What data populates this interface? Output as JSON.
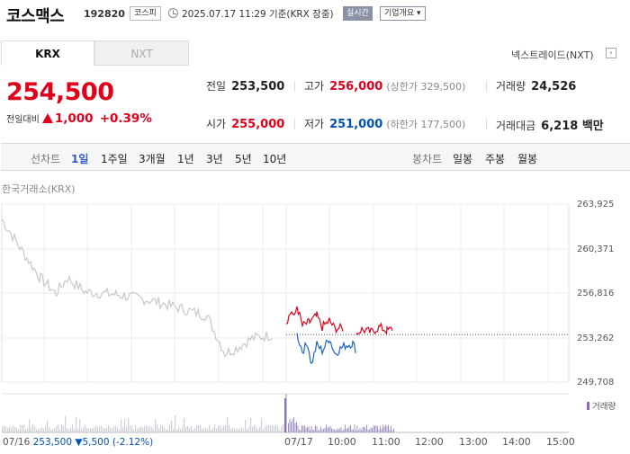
{
  "header": {
    "name": "코스맥스",
    "code": "192820",
    "market": "코스피",
    "datetime": "2025.07.17 11:29 기준(KRX 장중)",
    "realtime_label": "실시간",
    "overview_label": "기업개요 ▾"
  },
  "tabs": [
    "KRX",
    "NXT"
  ],
  "nxt_link": "넥스트레이드(NXT)",
  "nxt_link_arrow": "›",
  "price": {
    "current": "254,500",
    "change_label": "전일대비",
    "change_value": "1,000",
    "change_pct": "+0.39%"
  },
  "stats": {
    "prev_close_label": "전일",
    "prev_close": "253,500",
    "high_label": "고가",
    "high": "256,000",
    "upper_limit": "(상한가 329,500)",
    "volume_label": "거래량",
    "volume": "24,526",
    "open_label": "시가",
    "open": "255,000",
    "low_label": "저가",
    "low": "251,000",
    "lower_limit": "(하한가 177,500)",
    "amount_label": "거래대금",
    "amount": "6,218 백만"
  },
  "period_bar": {
    "line_label": "선차트",
    "line_options": [
      "1일",
      "1주일",
      "3개월",
      "1년",
      "3년",
      "5년",
      "10년"
    ],
    "candle_label": "봉차트",
    "candle_options": [
      "일봉",
      "주봉",
      "월봉"
    ]
  },
  "chart_source": "한국거래소(KRX)",
  "chart_data": {
    "type": "line",
    "y_ticks": [
      "263,925",
      "260,371",
      "256,816",
      "253,262",
      "249,708"
    ],
    "x_ticks": [
      "07/16",
      "07/17",
      "10:00",
      "11:00",
      "12:00",
      "13:00",
      "14:00",
      "15:00"
    ],
    "ylim": [
      249708,
      263925
    ],
    "reference_line": 253500,
    "prev_day_close": "07/16 253,500 ▼5,500 (-2.12%)",
    "volume_legend": "거래량",
    "series_colors": {
      "prev_day": "#c8c8c8",
      "up": "#e0001b",
      "down": "#1a66c6"
    }
  }
}
